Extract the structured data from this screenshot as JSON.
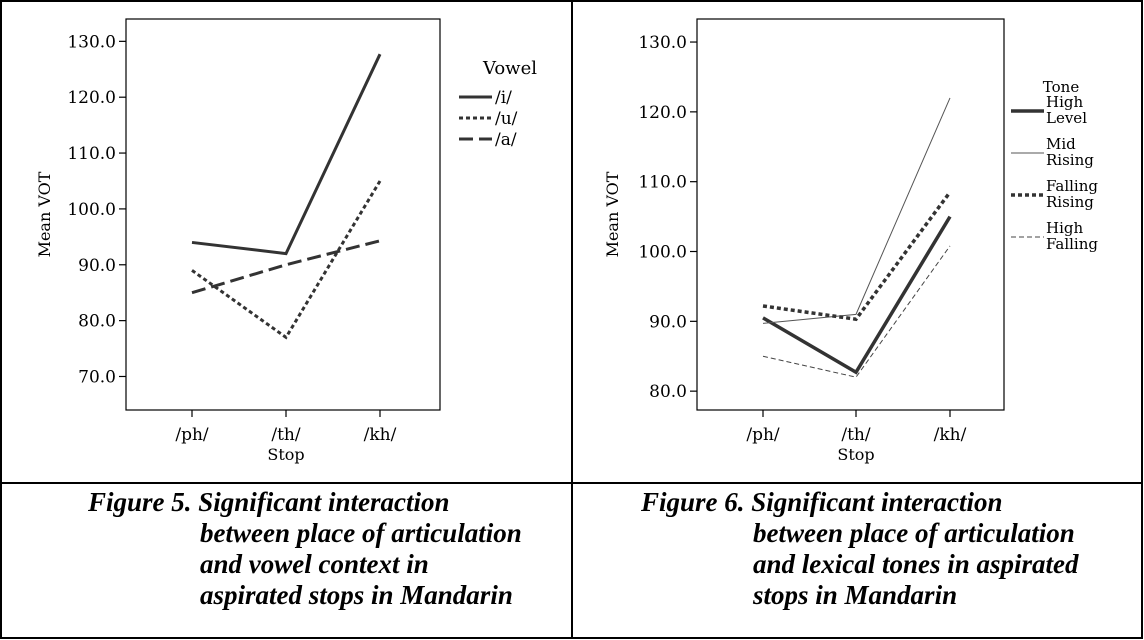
{
  "chart_data": [
    {
      "type": "line",
      "categories": [
        "/ph/",
        "/th/",
        "/kh/"
      ],
      "xlabel": "Stop",
      "ylabel": "Mean VOT",
      "ylim": [
        64.0,
        134.0
      ],
      "yticks": [
        70.0,
        80.0,
        90.0,
        100.0,
        110.0,
        120.0,
        130.0
      ],
      "ytick_labels": [
        "70.0",
        "80.0",
        "90.0",
        "100.0",
        "110.0",
        "120.0",
        "130.0"
      ],
      "grid": false,
      "legend": {
        "title": "Vowel",
        "position": "right"
      },
      "series": [
        {
          "name": "/i/",
          "values": [
            94.0,
            92.0,
            127.7
          ],
          "style": "solid",
          "color": "#333333"
        },
        {
          "name": "/u/",
          "values": [
            89.0,
            77.0,
            105.0
          ],
          "style": "dotted",
          "color": "#333333"
        },
        {
          "name": "/a/",
          "values": [
            85.0,
            90.0,
            94.3
          ],
          "style": "dashed",
          "color": "#333333"
        }
      ]
    },
    {
      "type": "line",
      "categories": [
        "/ph/",
        "/th/",
        "/kh/"
      ],
      "xlabel": "Stop",
      "ylabel": "Mean VOT",
      "ylim": [
        77.3,
        133.3
      ],
      "yticks": [
        80.0,
        90.0,
        100.0,
        110.0,
        120.0,
        130.0
      ],
      "ytick_labels": [
        "80.0",
        "90.0",
        "100.0",
        "110.0",
        "120.0",
        "130.0"
      ],
      "grid": false,
      "legend": {
        "title": "Tone",
        "position": "right"
      },
      "series": [
        {
          "name": "High Level",
          "lines": [
            "High",
            "Level"
          ],
          "values": [
            90.5,
            82.7,
            105.0
          ],
          "style": "thick-solid",
          "color": "#333333"
        },
        {
          "name": "Mid Rising",
          "lines": [
            "Mid",
            "Rising"
          ],
          "values": [
            89.7,
            91.0,
            122.0
          ],
          "style": "thin-solid",
          "color": "#555555"
        },
        {
          "name": "Falling Rising",
          "lines": [
            "Falling",
            "Rising"
          ],
          "values": [
            92.2,
            90.3,
            108.5
          ],
          "style": "thick-dotted",
          "color": "#333333"
        },
        {
          "name": "High Falling",
          "lines": [
            "High",
            "Falling"
          ],
          "values": [
            85.0,
            82.0,
            100.8
          ],
          "style": "thin-dashed",
          "color": "#444444"
        }
      ]
    }
  ],
  "captions": [
    {
      "lines": [
        "Figure 5. Significant interaction",
        "between place of articulation",
        "and vowel context in",
        "aspirated stops in Mandarin"
      ]
    },
    {
      "lines": [
        "Figure 6. Significant interaction",
        "between place of articulation",
        "and lexical tones in aspirated",
        "stops in Mandarin"
      ]
    }
  ]
}
